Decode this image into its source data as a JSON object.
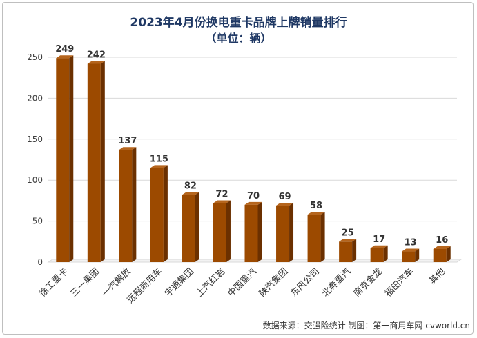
{
  "chart_data": {
    "type": "bar",
    "title": "2023年4月份换电重卡品牌上牌销量排行",
    "subtitle": "（单位：辆）",
    "categories": [
      "徐工重卡",
      "三一集团",
      "一汽解放",
      "远程商用车",
      "宇通集团",
      "上汽红岩",
      "中国重汽",
      "陕汽集团",
      "东风公司",
      "北奔重汽",
      "南京金龙",
      "福田汽车",
      "其他"
    ],
    "values": [
      249,
      242,
      137,
      115,
      82,
      72,
      70,
      69,
      58,
      25,
      17,
      13,
      16
    ],
    "ylim": [
      0,
      250
    ],
    "yticks": [
      0,
      50,
      100,
      150,
      200,
      250
    ],
    "grid": true,
    "bar_color": "#9c4a00"
  },
  "source_text": "数据来源：交强险统计  制图：第一商用车网 cvworld.cn"
}
